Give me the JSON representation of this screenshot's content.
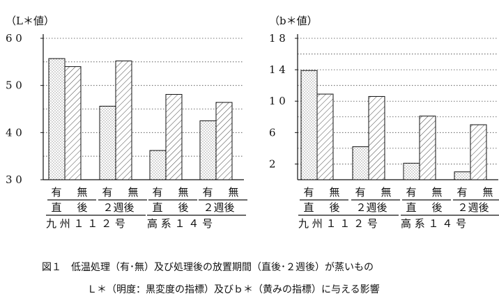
{
  "chart_data": [
    {
      "type": "bar",
      "ylabel": "（L＊値）",
      "yticks": [
        "6 0",
        "5 0",
        "4 0",
        "3 0"
      ],
      "ylim": [
        30,
        60
      ],
      "grid": "horizontal dotted",
      "categories": [
        "九州１１２号",
        "高系１４号"
      ],
      "groups": [
        {
          "row1": [
            "有",
            "無"
          ],
          "row2": [
            "直",
            "後"
          ],
          "row3": "九 州 １ １ ２ 号",
          "values": [
            55.7,
            54.0
          ]
        },
        {
          "row1": [
            "有",
            "無"
          ],
          "row2": [
            "２週後"
          ],
          "row3": "",
          "values": [
            45.6,
            55.2
          ]
        },
        {
          "row1": [
            "有",
            "無"
          ],
          "row2": [
            "直",
            "後"
          ],
          "row3": "高 系 １ ４ 号",
          "values": [
            36.2,
            48.1
          ]
        },
        {
          "row1": [
            "有",
            "無"
          ],
          "row2": [
            "２週後"
          ],
          "row3": "",
          "values": [
            42.5,
            46.4
          ]
        }
      ]
    },
    {
      "type": "bar",
      "ylabel": "（b＊値）",
      "yticks": [
        "1 8",
        "1 4",
        "1 0",
        "6",
        "2"
      ],
      "ylim": [
        0,
        18
      ],
      "grid": "horizontal dotted",
      "categories": [
        "九州１１２号",
        "高系１４号"
      ],
      "groups": [
        {
          "row1": [
            "有",
            "無"
          ],
          "row2": [
            "直",
            "後"
          ],
          "row3": "九 州 １ １ ２ 号",
          "values": [
            13.9,
            10.9
          ]
        },
        {
          "row1": [
            "有",
            "無"
          ],
          "row2": [
            "２週後"
          ],
          "row3": "",
          "values": [
            4.2,
            10.6
          ]
        },
        {
          "row1": [
            "有",
            "無"
          ],
          "row2": [
            "直",
            "後"
          ],
          "row3": "高 系 １ ４ 号",
          "values": [
            2.1,
            8.1
          ]
        },
        {
          "row1": [
            "有",
            "無"
          ],
          "row2": [
            "２週後"
          ],
          "row3": "",
          "values": [
            1.0,
            7.0
          ]
        }
      ]
    }
  ],
  "caption": {
    "line1": "図１　低温処理（有･無）及び処理後の放置期間（直後･２週後）が蒸いもの",
    "line2": "Ｌ＊（明度：黒変度の指標）及びｂ＊（黄みの指標）に与える影響"
  }
}
